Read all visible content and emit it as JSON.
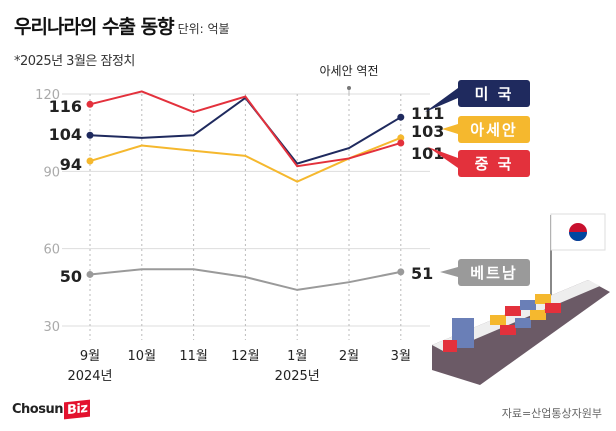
{
  "header": {
    "title": "우리나라의 수출 동향",
    "unit": "단위: 억불",
    "note": "*2025년 3월은 잠정치"
  },
  "chart_data": {
    "type": "line",
    "categories": [
      "9월",
      "10월",
      "11월",
      "12월",
      "1월",
      "2월",
      "3월"
    ],
    "year_labels": [
      "2024년",
      "",
      "",
      "",
      "2025년",
      "",
      ""
    ],
    "ylim": [
      30,
      120
    ],
    "yticks": [
      120,
      90,
      60,
      30
    ],
    "grid": true,
    "annotation": "아세안 역전",
    "series": [
      {
        "name": "미 국",
        "color": "#1f2a5e",
        "values": [
          104,
          103,
          104,
          118.5,
          93,
          99,
          111
        ],
        "start_label": "104",
        "end_label": "111"
      },
      {
        "name": "아세안",
        "color": "#f5b82e",
        "values": [
          94,
          100,
          98,
          96,
          86,
          95,
          103
        ],
        "start_label": "94",
        "end_label": "103"
      },
      {
        "name": "중 국",
        "color": "#e3313c",
        "values": [
          116,
          121,
          113,
          119,
          92,
          95,
          101
        ],
        "start_label": "116",
        "end_label": "101"
      },
      {
        "name": "베트남",
        "color": "#9a9a9a",
        "values": [
          50,
          52,
          52,
          49,
          44,
          47,
          51
        ],
        "start_label": "50",
        "end_label": "51"
      }
    ]
  },
  "footer": {
    "logo": "Chosun",
    "logo_biz": "Biz",
    "source": "자료=산업통상자원부"
  }
}
